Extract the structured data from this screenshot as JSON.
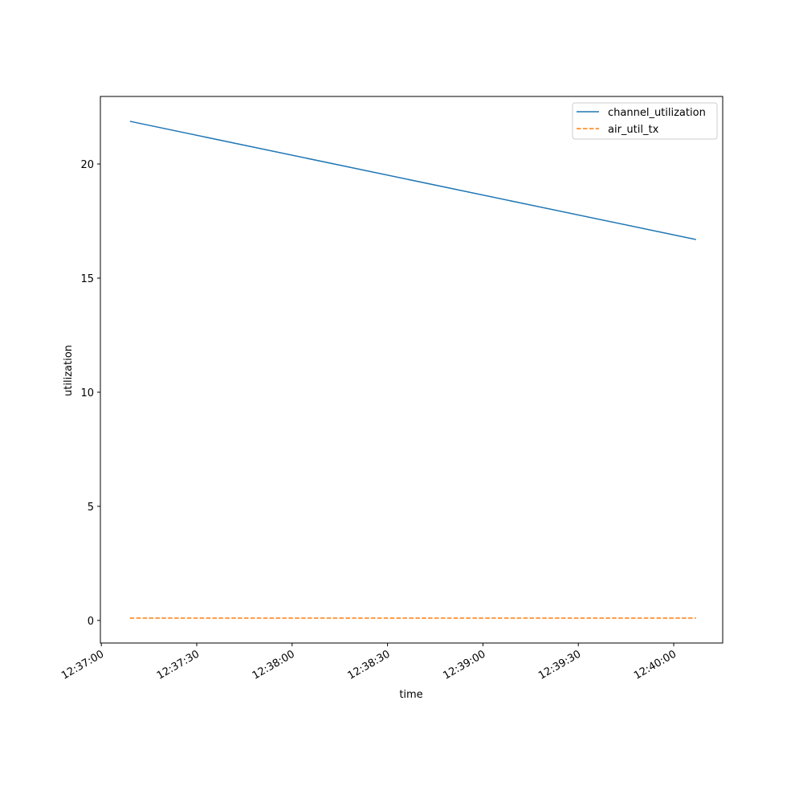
{
  "chart_data": {
    "type": "line",
    "x_label": "time",
    "y_label": "utilization",
    "x": [
      "12:37:09",
      "12:40:07"
    ],
    "series": [
      {
        "name": "channel_utilization",
        "color": "#1f77b4",
        "linestyle": "solid",
        "values": [
          21.87,
          16.69
        ]
      },
      {
        "name": "air_util_tx",
        "color": "#ff7f0e",
        "linestyle": "dashed",
        "values": [
          0.1,
          0.1
        ]
      }
    ],
    "xlim": [
      "12:36:59.7",
      "12:40:15.4"
    ],
    "xticks": [
      "12:37:00",
      "12:37:30",
      "12:38:00",
      "12:38:30",
      "12:39:00",
      "12:39:30",
      "12:40:00"
    ],
    "ylim": [
      -0.99,
      22.96
    ],
    "yticks": [
      0,
      5,
      10,
      15,
      20
    ],
    "grid": false,
    "legend": "upper-right"
  }
}
